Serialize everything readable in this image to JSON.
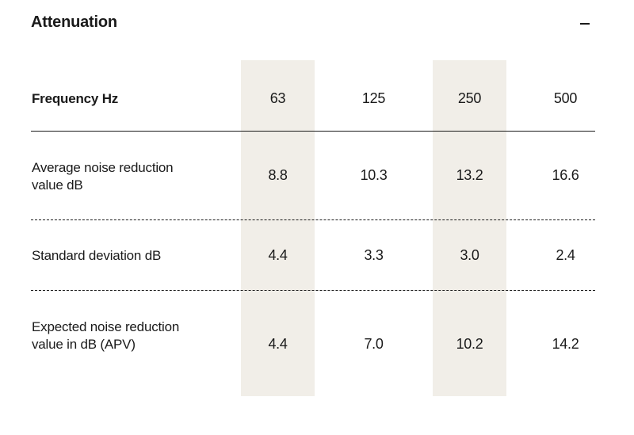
{
  "section": {
    "title": "Attenuation",
    "collapse_icon": "minus-icon"
  },
  "table": {
    "header": {
      "label": "Frequency Hz",
      "frequencies": [
        "63",
        "125",
        "250",
        "500"
      ]
    },
    "rows": [
      {
        "label": "Average noise reduction value dB",
        "values": [
          "8.8",
          "10.3",
          "13.2",
          "16.6"
        ]
      },
      {
        "label": "Standard deviation dB",
        "values": [
          "4.4",
          "3.3",
          "3.0",
          "2.4"
        ]
      },
      {
        "label": "Expected noise reduction value in dB (APV)",
        "values": [
          "4.4",
          "7.0",
          "10.2",
          "14.2"
        ]
      }
    ]
  },
  "colors": {
    "column_highlight": "#f1eee8",
    "text": "#1a1a1a"
  }
}
